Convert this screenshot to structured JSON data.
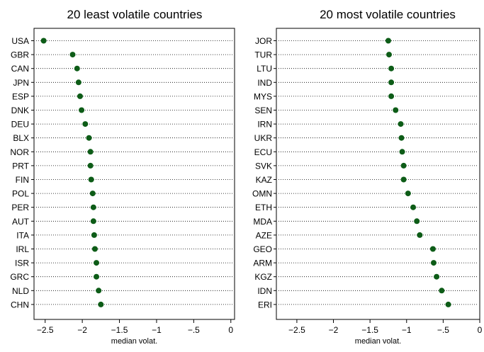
{
  "chart_data": [
    {
      "type": "scatter",
      "title": "20 least volatile countries",
      "xlabel": "median volat.",
      "ylabel": "",
      "xlim": [
        -2.65,
        0.05
      ],
      "xticks": [
        -2.5,
        -2,
        -1.5,
        -1,
        -0.5,
        0
      ],
      "xtick_labels": [
        "−2.5",
        "−2",
        "−1.5",
        "−1",
        "−.5",
        "0"
      ],
      "grid": "dotted horizontal lines per country",
      "marker_color": "#0d5c17",
      "categories": [
        "USA",
        "GBR",
        "CAN",
        "JPN",
        "ESP",
        "DNK",
        "DEU",
        "BLX",
        "NOR",
        "PRT",
        "FIN",
        "POL",
        "PER",
        "AUT",
        "ITA",
        "IRL",
        "ISR",
        "GRC",
        "NLD",
        "CHN"
      ],
      "values": [
        -2.52,
        -2.13,
        -2.07,
        -2.05,
        -2.03,
        -2.01,
        -1.96,
        -1.91,
        -1.89,
        -1.89,
        -1.88,
        -1.86,
        -1.85,
        -1.85,
        -1.84,
        -1.83,
        -1.81,
        -1.81,
        -1.78,
        -1.75
      ]
    },
    {
      "type": "scatter",
      "title": "20 most volatile countries",
      "xlabel": "median volat.",
      "ylabel": "",
      "xlim": [
        -2.78,
        0.0
      ],
      "xticks": [
        -2.5,
        -2,
        -1.5,
        -1,
        -0.5,
        0
      ],
      "xtick_labels": [
        "−2.5",
        "−2",
        "−1.5",
        "−1",
        "−.5",
        "0"
      ],
      "grid": "dotted horizontal lines per country",
      "marker_color": "#0d5c17",
      "categories": [
        "JOR",
        "TUR",
        "LTU",
        "IND",
        "MYS",
        "SEN",
        "IRN",
        "UKR",
        "ECU",
        "SVK",
        "KAZ",
        "OMN",
        "ETH",
        "MDA",
        "AZE",
        "GEO",
        "ARM",
        "KGZ",
        "IDN",
        "ERI"
      ],
      "values": [
        -1.25,
        -1.24,
        -1.21,
        -1.21,
        -1.21,
        -1.15,
        -1.08,
        -1.07,
        -1.06,
        -1.04,
        -1.04,
        -0.98,
        -0.91,
        -0.86,
        -0.82,
        -0.64,
        -0.63,
        -0.59,
        -0.52,
        -0.43
      ]
    }
  ]
}
